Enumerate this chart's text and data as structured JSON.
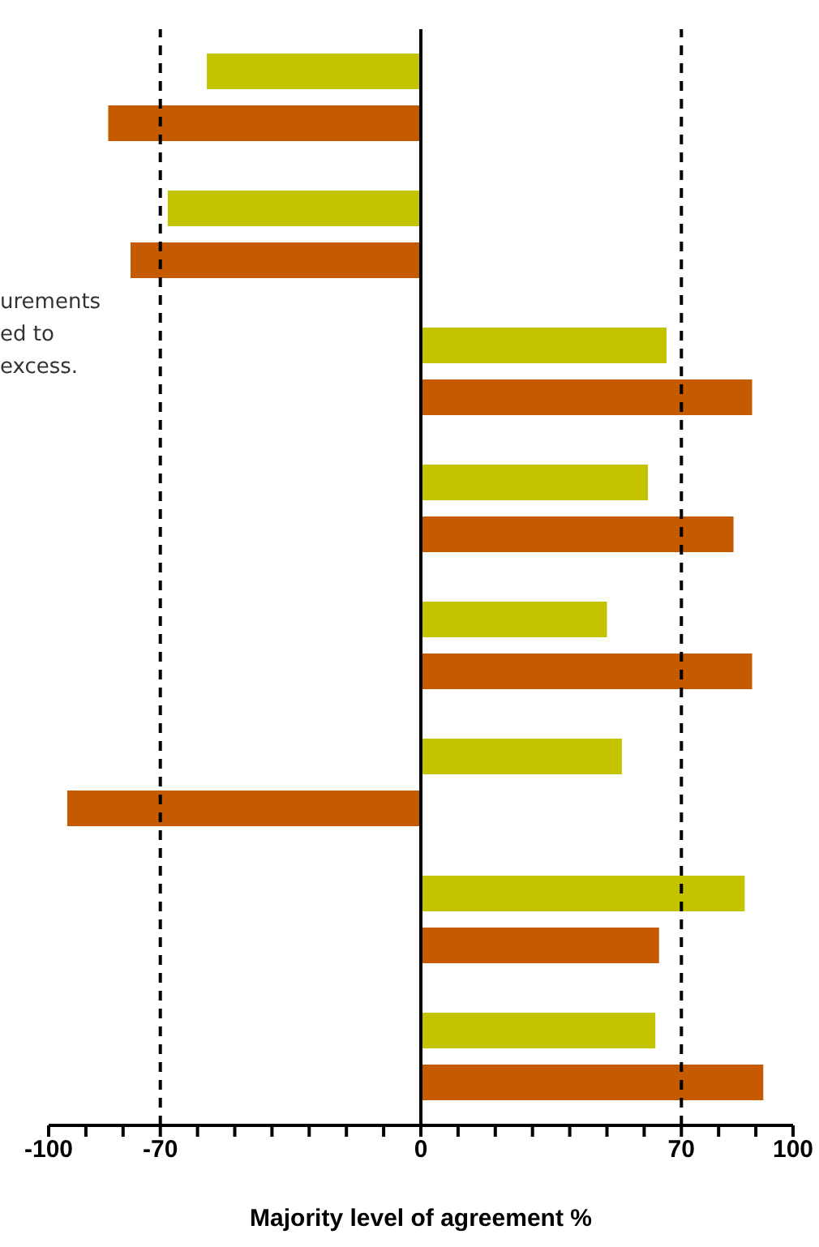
{
  "chart_data": {
    "type": "bar",
    "orientation": "horizontal",
    "xlabel": "Majority level of agreement %",
    "categories": [
      null,
      null,
      null,
      null,
      null,
      null,
      null,
      null
    ],
    "series": [
      {
        "color": "#c3c300",
        "values": [
          -57.5,
          -68,
          66,
          61,
          50,
          54,
          87,
          63
        ]
      },
      {
        "color": "#c55a00",
        "values": [
          -84,
          -78,
          89,
          84,
          89,
          -95,
          64,
          92
        ]
      }
    ],
    "xlim": [
      -100,
      100
    ],
    "xticks": [
      -100,
      {
        "value": -90,
        "label": null
      },
      {
        "value": -80,
        "label": null
      },
      -70,
      {
        "value": -60,
        "label": null
      },
      {
        "value": -50,
        "label": null
      },
      {
        "value": -40,
        "label": null
      },
      {
        "value": -30,
        "label": null
      },
      {
        "value": -20,
        "label": null
      },
      {
        "value": -10,
        "label": null
      },
      0,
      {
        "value": 10,
        "label": null
      },
      {
        "value": 20,
        "label": null
      },
      {
        "value": 30,
        "label": null
      },
      {
        "value": 40,
        "label": null
      },
      {
        "value": 50,
        "label": null
      },
      {
        "value": 60,
        "label": null
      },
      70,
      {
        "value": 80,
        "label": null
      },
      {
        "value": 90,
        "label": null
      },
      100
    ],
    "ref_lines": [
      {
        "axis": "x",
        "value": -70,
        "color": "#000000",
        "line_style": "dashed"
      },
      {
        "axis": "x",
        "value": 70,
        "color": "#000000",
        "line_style": "dashed"
      },
      {
        "axis": "x",
        "value": 0,
        "color": "#000000",
        "line_style": "solid"
      }
    ],
    "annotations": [
      "urements\ned to\nexcess."
    ],
    "tick_labels": "x",
    "grid": false,
    "legend": false
  }
}
